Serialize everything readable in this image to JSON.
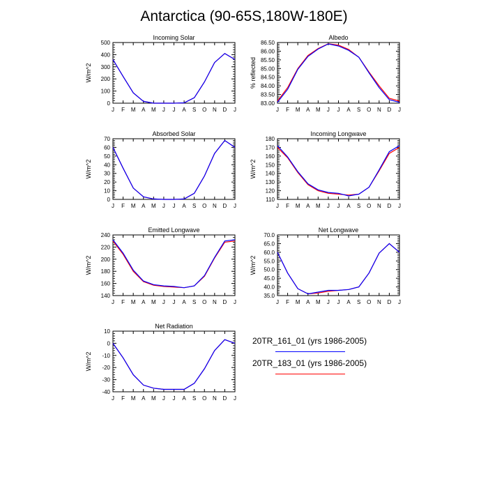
{
  "title": "Antarctica (90-65S,180W-180E)",
  "colors": {
    "series1": "#0000ff",
    "series2": "#ff0000"
  },
  "legend": [
    {
      "label": "20TR_161_01 (yrs 1986-2005)",
      "color": "#0000ff"
    },
    {
      "label": "20TR_183_01 (yrs 1986-2005)",
      "color": "#ff0000"
    }
  ],
  "chart_data": [
    {
      "type": "line",
      "title": "Incoming Solar",
      "ylabel": "W/m^2",
      "categories": [
        "J",
        "F",
        "M",
        "A",
        "M",
        "J",
        "J",
        "A",
        "S",
        "O",
        "N",
        "D",
        "J"
      ],
      "ylim": [
        0,
        500
      ],
      "yticks": [
        0,
        100,
        200,
        300,
        400,
        500
      ],
      "yticklabels": [
        "0",
        "100",
        "200",
        "300",
        "400",
        "500"
      ],
      "series": [
        {
          "name": "20TR_161_01 (yrs 1986-2005)",
          "color": "#0000ff",
          "values": [
            360,
            220,
            85,
            15,
            0,
            0,
            0,
            3,
            45,
            175,
            335,
            410,
            360
          ]
        },
        {
          "name": "20TR_183_01 (yrs 1986-2005)",
          "color": "#ff0000",
          "values": [
            360,
            220,
            85,
            15,
            0,
            0,
            0,
            3,
            45,
            175,
            335,
            410,
            360
          ]
        }
      ]
    },
    {
      "type": "line",
      "title": "Albedo",
      "ylabel": "% reflected",
      "categories": [
        "J",
        "F",
        "M",
        "A",
        "M",
        "J",
        "J",
        "A",
        "S",
        "O",
        "N",
        "D",
        "J"
      ],
      "ylim": [
        83.0,
        86.5
      ],
      "yticks": [
        83.0,
        83.5,
        84.0,
        84.5,
        85.0,
        85.5,
        86.0,
        86.5
      ],
      "yticklabels": [
        "83.00",
        "83.50",
        "84.00",
        "84.50",
        "85.00",
        "85.50",
        "86.00",
        "86.50"
      ],
      "series": [
        {
          "name": "20TR_161_01 (yrs 1986-2005)",
          "color": "#0000ff",
          "values": [
            83.05,
            83.8,
            84.95,
            85.7,
            86.12,
            86.42,
            86.3,
            86.05,
            85.65,
            84.75,
            83.9,
            83.2,
            83.05
          ]
        },
        {
          "name": "20TR_183_01 (yrs 1986-2005)",
          "color": "#ff0000",
          "values": [
            83.12,
            83.9,
            85.0,
            85.75,
            86.15,
            86.43,
            86.35,
            86.1,
            85.65,
            84.8,
            84.0,
            83.28,
            83.12
          ]
        }
      ]
    },
    {
      "type": "line",
      "title": "Absorbed Solar",
      "ylabel": "W/m^2",
      "categories": [
        "J",
        "F",
        "M",
        "A",
        "M",
        "J",
        "J",
        "A",
        "S",
        "O",
        "N",
        "D",
        "J"
      ],
      "ylim": [
        0,
        70
      ],
      "yticks": [
        0,
        10,
        20,
        30,
        40,
        50,
        60,
        70
      ],
      "yticklabels": [
        "0",
        "10",
        "20",
        "30",
        "40",
        "50",
        "60",
        "70"
      ],
      "series": [
        {
          "name": "20TR_161_01 (yrs 1986-2005)",
          "color": "#0000ff",
          "values": [
            60,
            36,
            13,
            3,
            0.5,
            0,
            0,
            0.5,
            7,
            27,
            53,
            68,
            60
          ]
        },
        {
          "name": "20TR_183_01 (yrs 1986-2005)",
          "color": "#ff0000",
          "values": [
            60,
            36,
            13,
            3,
            0.5,
            0,
            0,
            0.5,
            7,
            27,
            53,
            68,
            60
          ]
        }
      ]
    },
    {
      "type": "line",
      "title": "Incoming Longwave",
      "ylabel": "W/m^2",
      "categories": [
        "J",
        "F",
        "M",
        "A",
        "M",
        "J",
        "J",
        "A",
        "S",
        "O",
        "N",
        "D",
        "J"
      ],
      "ylim": [
        110,
        180
      ],
      "yticks": [
        110,
        120,
        130,
        140,
        150,
        160,
        170,
        180
      ],
      "yticklabels": [
        "110",
        "120",
        "130",
        "140",
        "150",
        "160",
        "170",
        "180"
      ],
      "series": [
        {
          "name": "20TR_161_01 (yrs 1986-2005)",
          "color": "#0000ff",
          "values": [
            172,
            159,
            142,
            128,
            121,
            118,
            117,
            114,
            116,
            124,
            144,
            165,
            172
          ]
        },
        {
          "name": "20TR_183_01 (yrs 1986-2005)",
          "color": "#ff0000",
          "values": [
            170,
            158,
            141,
            127,
            120,
            117,
            116,
            115,
            116,
            124,
            143,
            163,
            170
          ]
        }
      ]
    },
    {
      "type": "line",
      "title": "Emitted Longwave",
      "ylabel": "W/m^2",
      "categories": [
        "J",
        "F",
        "M",
        "A",
        "M",
        "J",
        "J",
        "A",
        "S",
        "O",
        "N",
        "D",
        "J"
      ],
      "ylim": [
        140,
        240
      ],
      "yticks": [
        140,
        160,
        180,
        200,
        220,
        240
      ],
      "yticklabels": [
        "140",
        "160",
        "180",
        "200",
        "220",
        "240"
      ],
      "series": [
        {
          "name": "20TR_161_01 (yrs 1986-2005)",
          "color": "#0000ff",
          "values": [
            232,
            210,
            182,
            164,
            158,
            156,
            155,
            153,
            156,
            173,
            203,
            230,
            232
          ]
        },
        {
          "name": "20TR_183_01 (yrs 1986-2005)",
          "color": "#ff0000",
          "values": [
            230,
            208,
            180,
            163,
            157,
            155,
            154,
            153,
            156,
            172,
            202,
            228,
            230
          ]
        }
      ]
    },
    {
      "type": "line",
      "title": "Net Longwave",
      "ylabel": "W/m^2",
      "categories": [
        "J",
        "F",
        "M",
        "A",
        "M",
        "J",
        "J",
        "A",
        "S",
        "O",
        "N",
        "D",
        "J"
      ],
      "ylim": [
        35,
        70
      ],
      "yticks": [
        35,
        40,
        45,
        50,
        55,
        60,
        65,
        70
      ],
      "yticklabels": [
        "35.0",
        "40.0",
        "45.0",
        "50.0",
        "55.0",
        "60.0",
        "65.0",
        "70.0"
      ],
      "series": [
        {
          "name": "20TR_161_01 (yrs 1986-2005)",
          "color": "#0000ff",
          "values": [
            60,
            48,
            39,
            36,
            37,
            38,
            38,
            38.5,
            40,
            48,
            59.5,
            65,
            60
          ]
        },
        {
          "name": "20TR_183_01 (yrs 1986-2005)",
          "color": "#ff0000",
          "values": [
            60,
            48,
            39,
            36,
            36.5,
            37.5,
            38,
            38.5,
            40,
            48,
            59.5,
            65,
            60
          ]
        }
      ]
    },
    {
      "type": "line",
      "title": "Net Radiation",
      "ylabel": "W/m^2",
      "categories": [
        "J",
        "F",
        "M",
        "A",
        "M",
        "J",
        "J",
        "A",
        "S",
        "O",
        "N",
        "D",
        "J"
      ],
      "ylim": [
        -40,
        10
      ],
      "yticks": [
        -40,
        -30,
        -20,
        -10,
        0,
        10
      ],
      "yticklabels": [
        "-40",
        "-30",
        "-20",
        "-10",
        "0",
        "10"
      ],
      "series": [
        {
          "name": "20TR_161_01 (yrs 1986-2005)",
          "color": "#0000ff",
          "values": [
            0,
            -12,
            -26,
            -34.5,
            -37,
            -38,
            -38,
            -38,
            -33,
            -21,
            -6,
            3,
            0
          ]
        },
        {
          "name": "20TR_183_01 (yrs 1986-2005)",
          "color": "#ff0000",
          "values": [
            0,
            -12,
            -26,
            -34.5,
            -37,
            -38,
            -38,
            -38,
            -33,
            -21,
            -6,
            3,
            0
          ]
        }
      ]
    }
  ]
}
